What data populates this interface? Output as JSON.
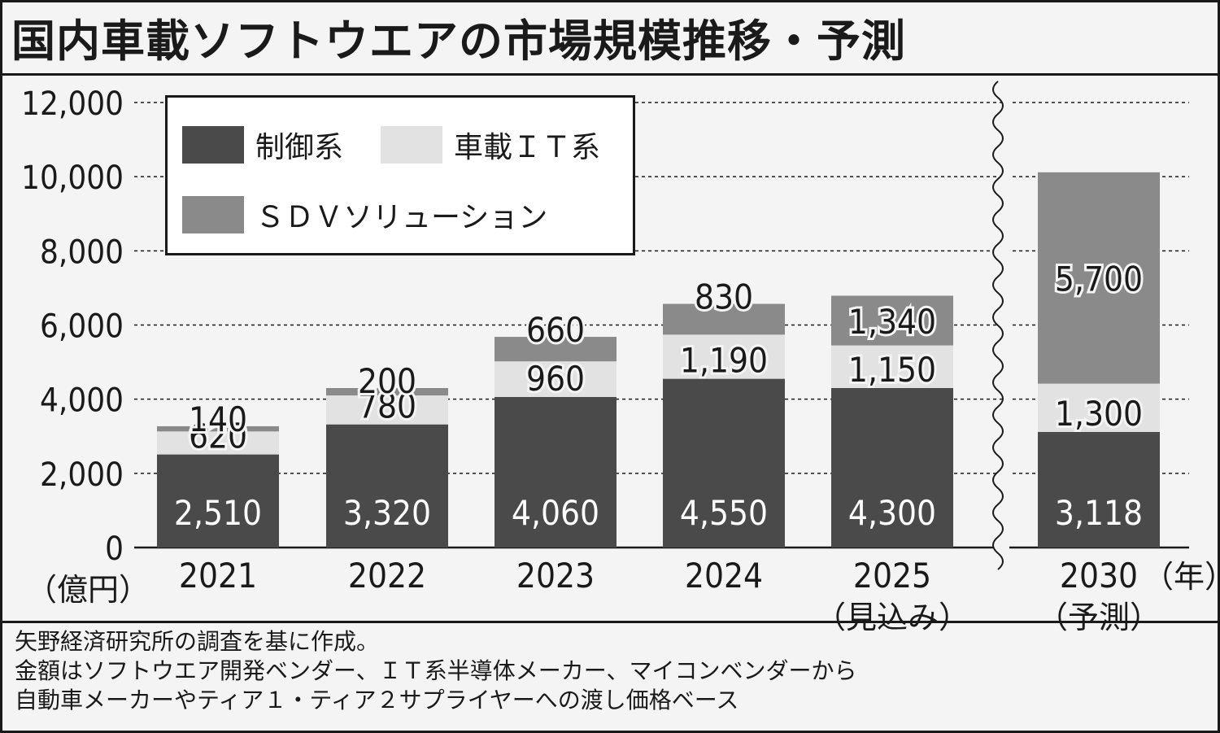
{
  "title": "国内車載ソフトウエアの市場規模推移・予測",
  "y_unit": "（億円）",
  "x_unit": "（年）",
  "colors": {
    "control": "#4a4a4a",
    "it": "#e2e2e2",
    "sdv": "#8a8a8a",
    "grid": "#1a1a1a",
    "background": "#f4f4f4"
  },
  "legend": {
    "control": "制御系",
    "it": "車載ＩＴ系",
    "sdv": "ＳＤＶソリューション"
  },
  "notes": [
    "矢野経済研究所の調査を基に作成。",
    "金額はソフトウエア開発ベンダー、ＩＴ系半導体メーカー、マイコンベンダーから",
    "自動車メーカーやティア１・ティア２サプライヤーへの渡し価格ベース"
  ],
  "chart_data": {
    "type": "bar",
    "stacked": true,
    "categories": [
      "2021",
      "2022",
      "2023",
      "2024",
      "2025",
      "2030"
    ],
    "category_sublabels": [
      "",
      "",
      "",
      "",
      "（見込み）",
      "（予測）"
    ],
    "series": [
      {
        "name": "制御系",
        "values": [
          2510,
          3320,
          4060,
          4550,
          4300,
          3118
        ],
        "labels": [
          "2,510",
          "3,320",
          "4,060",
          "4,550",
          "4,300",
          "3,118"
        ]
      },
      {
        "name": "車載ＩＴ系",
        "values": [
          620,
          780,
          960,
          1190,
          1150,
          1300
        ],
        "labels": [
          "620",
          "780",
          "960",
          "1,190",
          "1,150",
          "1,300"
        ]
      },
      {
        "name": "ＳＤＶソリューション",
        "values": [
          140,
          200,
          660,
          830,
          1340,
          5700
        ],
        "labels": [
          "140",
          "200",
          "660",
          "830",
          "1,340",
          "5,700"
        ]
      }
    ],
    "yticks": [
      0,
      2000,
      4000,
      6000,
      8000,
      10000,
      12000
    ],
    "ytick_labels": [
      "0",
      "2,000",
      "4,000",
      "6,000",
      "8,000",
      "10,000",
      "12,000"
    ],
    "ylim": [
      0,
      12000
    ],
    "grid": true,
    "axis_break_before_last": true,
    "legend_position": "top-left"
  }
}
